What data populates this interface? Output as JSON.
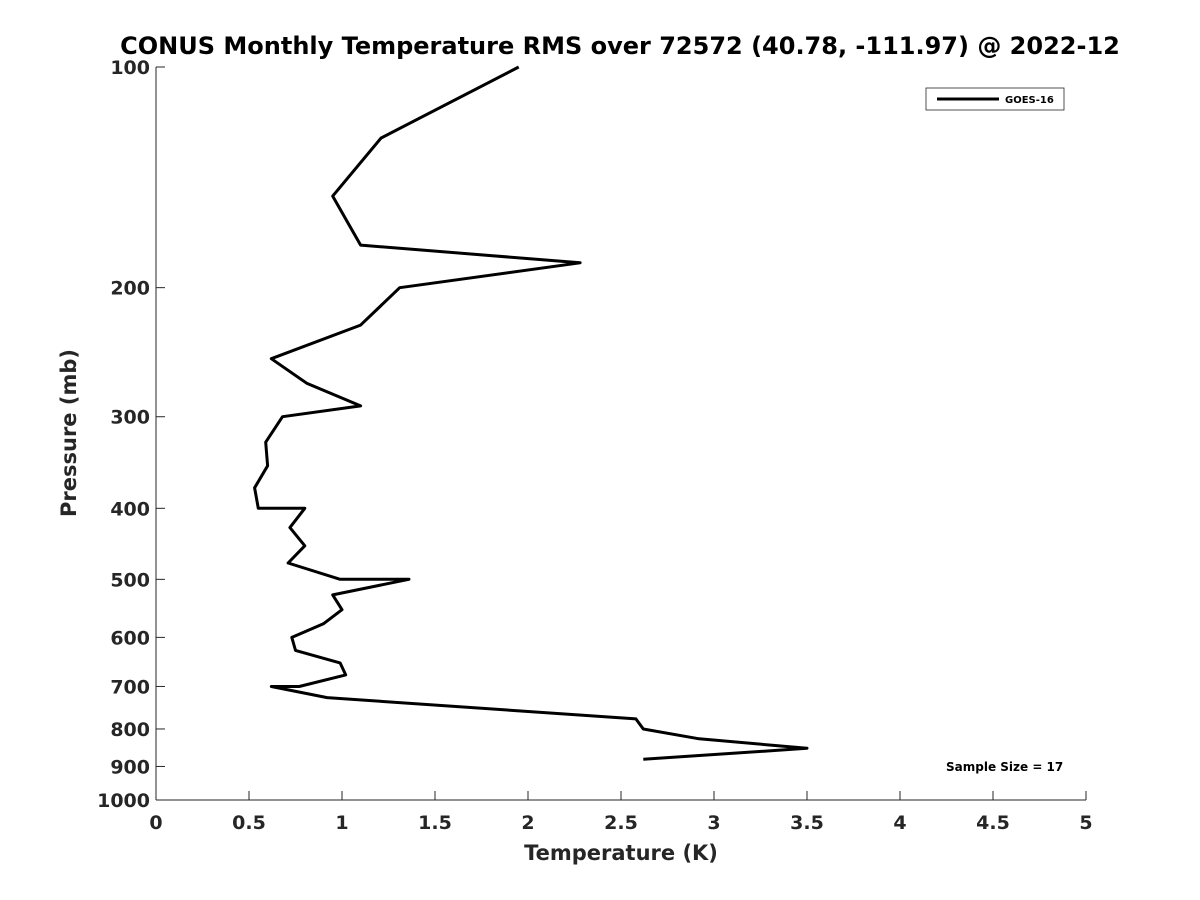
{
  "chart_data": {
    "type": "line",
    "title": "CONUS Monthly Temperature RMS over 72572 (40.78, -111.97) @ 2022-12",
    "xlabel": "Temperature (K)",
    "ylabel": "Pressure (mb)",
    "xlim": [
      0,
      5
    ],
    "ylim": [
      100,
      1000
    ],
    "y_scale": "log",
    "y_reversed": true,
    "x_ticks": [
      "0",
      "0.5",
      "1",
      "1.5",
      "2",
      "2.5",
      "3",
      "3.5",
      "4",
      "4.5",
      "5"
    ],
    "x_tick_values": [
      0,
      0.5,
      1,
      1.5,
      2,
      2.5,
      3,
      3.5,
      4,
      4.5,
      5
    ],
    "y_ticks": [
      "100",
      "200",
      "300",
      "400",
      "500",
      "600",
      "700",
      "800",
      "900",
      "1000"
    ],
    "y_tick_values": [
      100,
      200,
      300,
      400,
      500,
      600,
      700,
      800,
      900,
      1000
    ],
    "grid": false,
    "legend_position": "top-right",
    "series": [
      {
        "name": "GOES-16",
        "color": "#000000",
        "x": [
          1.95,
          1.21,
          0.95,
          1.1,
          2.28,
          1.31,
          1.1,
          0.62,
          0.81,
          1.1,
          0.68,
          0.59,
          0.6,
          0.53,
          0.55,
          0.8,
          0.72,
          0.8,
          0.71,
          0.99,
          1.36,
          0.95,
          1.0,
          0.9,
          0.73,
          0.75,
          0.99,
          1.02,
          0.77,
          0.62,
          0.92,
          2.58,
          2.62,
          2.92,
          3.5,
          2.62
        ],
        "y": [
          100,
          125,
          150,
          175,
          185,
          200,
          225,
          250,
          270,
          290,
          300,
          325,
          350,
          375,
          400,
          400,
          425,
          450,
          475,
          500,
          500,
          525,
          550,
          575,
          600,
          625,
          650,
          675,
          700,
          700,
          725,
          775,
          800,
          825,
          850,
          880
        ]
      }
    ],
    "annotations": [
      "Sample Size = 17"
    ]
  }
}
